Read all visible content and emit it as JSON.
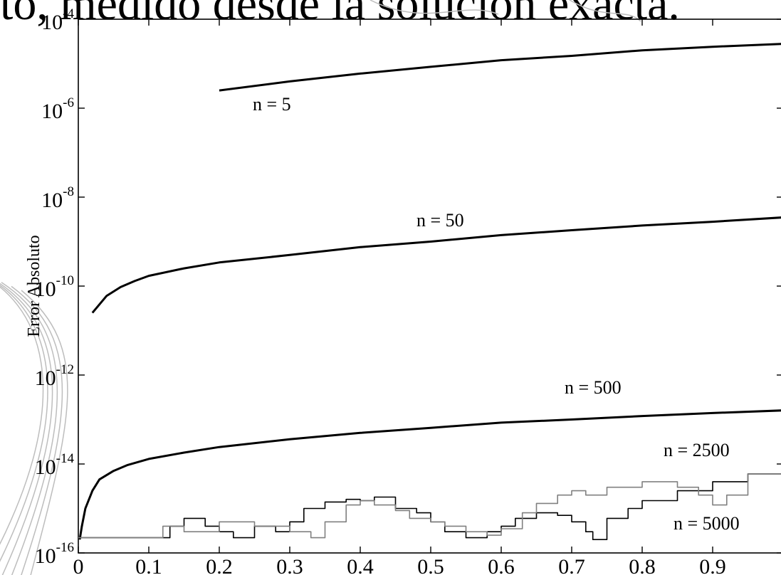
{
  "page_heading": "to, medido desde la solución exacta.",
  "chart_data": {
    "type": "line",
    "title": "",
    "xlabel": "",
    "ylabel": "Error Absoluto",
    "xlim": [
      0,
      1
    ],
    "ylim": [
      1e-16,
      0.0001
    ],
    "yscale": "log",
    "grid": false,
    "legend": "none",
    "x_ticks": [
      "0",
      "0.1",
      "0.2",
      "0.3",
      "0.4",
      "0.5",
      "0.6",
      "0.7",
      "0.8",
      "0.9"
    ],
    "y_ticks": [
      {
        "base": "10",
        "exp": "-4"
      },
      {
        "base": "10",
        "exp": "-6"
      },
      {
        "base": "10",
        "exp": "-8"
      },
      {
        "base": "10",
        "exp": "-10"
      },
      {
        "base": "10",
        "exp": "-12"
      },
      {
        "base": "10",
        "exp": "-14"
      },
      {
        "base": "10",
        "exp": "-16"
      }
    ],
    "series": [
      {
        "name": "n = 5",
        "color": "#000000",
        "x": [
          0.2,
          0.3,
          0.4,
          0.5,
          0.6,
          0.7,
          0.8,
          0.9,
          1.0
        ],
        "y": [
          2.5e-06,
          4e-06,
          6e-06,
          8.5e-06,
          1.2e-05,
          1.5e-05,
          2e-05,
          2.4e-05,
          2.8e-05
        ]
      },
      {
        "name": "n = 50",
        "color": "#000000",
        "x": [
          0.02,
          0.04,
          0.06,
          0.08,
          0.1,
          0.15,
          0.2,
          0.3,
          0.4,
          0.5,
          0.6,
          0.7,
          0.8,
          0.9,
          1.0
        ],
        "y": [
          2.5e-11,
          6e-11,
          9.5e-11,
          1.3e-10,
          1.7e-10,
          2.5e-10,
          3.4e-10,
          5e-10,
          7.5e-10,
          1e-09,
          1.4e-09,
          1.8e-09,
          2.3e-09,
          2.8e-09,
          3.5e-09
        ]
      },
      {
        "name": "n = 500",
        "color": "#000000",
        "x": [
          0.002,
          0.005,
          0.01,
          0.02,
          0.03,
          0.05,
          0.07,
          0.1,
          0.15,
          0.2,
          0.3,
          0.4,
          0.5,
          0.6,
          0.7,
          0.8,
          0.9,
          1.0
        ],
        "y": [
          2e-16,
          4e-16,
          1e-15,
          2.5e-15,
          4.5e-15,
          7e-15,
          9.5e-15,
          1.3e-14,
          1.8e-14,
          2.4e-14,
          3.6e-14,
          5e-14,
          6.5e-14,
          8.5e-14,
          1e-13,
          1.2e-13,
          1.4e-13,
          1.6e-13
        ]
      },
      {
        "name": "n = 2500",
        "color": "#000000",
        "x": [
          0.0,
          0.1,
          0.13,
          0.15,
          0.18,
          0.2,
          0.22,
          0.25,
          0.28,
          0.3,
          0.32,
          0.35,
          0.38,
          0.4,
          0.42,
          0.45,
          0.48,
          0.5,
          0.52,
          0.55,
          0.58,
          0.6,
          0.62,
          0.65,
          0.68,
          0.7,
          0.72,
          0.73,
          0.75,
          0.78,
          0.8,
          0.85,
          0.9,
          0.95,
          1.0
        ],
        "y": [
          2.2e-16,
          2.2e-16,
          4e-16,
          6e-16,
          4e-16,
          3e-16,
          2.2e-16,
          4e-16,
          3e-16,
          5e-16,
          1e-15,
          1.4e-15,
          1.6e-15,
          1.5e-15,
          1.8e-15,
          1e-15,
          8e-16,
          5e-16,
          3e-16,
          2.2e-16,
          3e-16,
          4e-16,
          6e-16,
          8e-16,
          7e-16,
          5e-16,
          3e-16,
          2e-16,
          6e-16,
          1e-15,
          1.5e-15,
          2.5e-15,
          4e-15,
          6e-15,
          7e-15
        ]
      },
      {
        "name": "n = 5000",
        "color": "#808080",
        "x": [
          0.0,
          0.1,
          0.12,
          0.15,
          0.2,
          0.25,
          0.3,
          0.33,
          0.35,
          0.38,
          0.4,
          0.42,
          0.45,
          0.47,
          0.5,
          0.52,
          0.55,
          0.58,
          0.6,
          0.63,
          0.65,
          0.68,
          0.7,
          0.72,
          0.75,
          0.8,
          0.85,
          0.88,
          0.9,
          0.92,
          0.95,
          1.0
        ],
        "y": [
          2.2e-16,
          2.2e-16,
          4e-16,
          3e-16,
          5e-16,
          4e-16,
          3e-16,
          2.2e-16,
          5e-16,
          1.2e-15,
          1.5e-15,
          1.2e-15,
          9e-16,
          6e-16,
          5e-16,
          4e-16,
          3e-16,
          2.5e-16,
          3.5e-16,
          8e-16,
          1.3e-15,
          2e-15,
          2.5e-15,
          2e-15,
          3e-15,
          4e-15,
          3e-15,
          2e-15,
          1.2e-15,
          2e-15,
          6e-15,
          8e-15
        ]
      }
    ],
    "annotations": [
      {
        "text": "n = 5",
        "series": "n = 5"
      },
      {
        "text": "n = 50",
        "series": "n = 50"
      },
      {
        "text": "n = 500",
        "series": "n = 500"
      },
      {
        "text": "n = 2500",
        "series": "n = 2500"
      },
      {
        "text": "n = 5000",
        "series": "n = 5000"
      }
    ]
  }
}
